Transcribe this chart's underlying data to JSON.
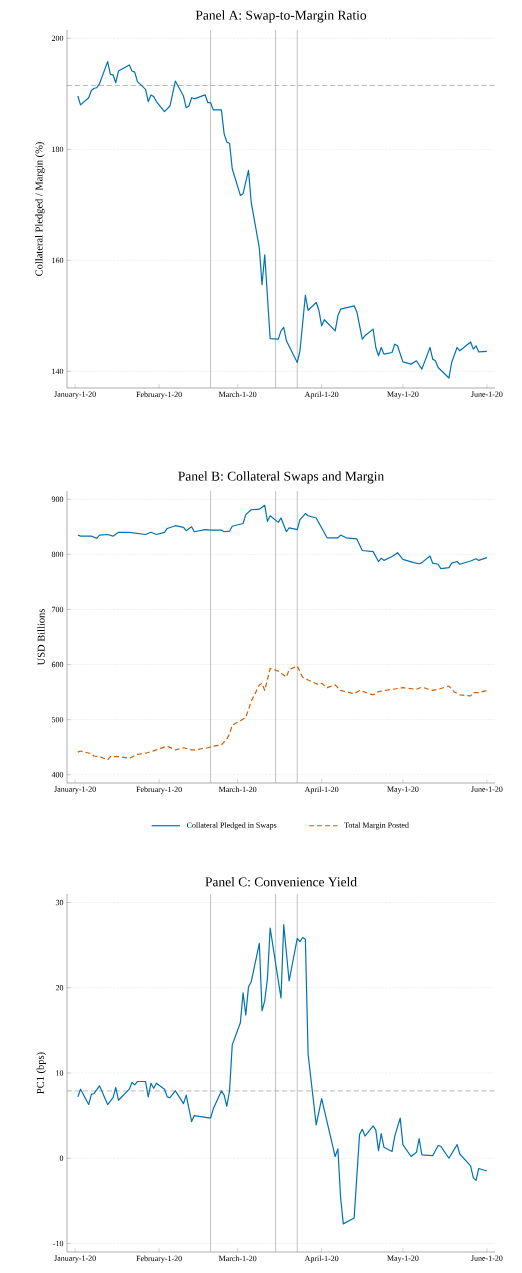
{
  "chart_data": [
    {
      "type": "line",
      "title": "Panel A: Swap-to-Margin Ratio",
      "ylabel": "Collateral Pledged / Margin (%)",
      "grid": "y",
      "xlim": [
        "2019-12-29",
        "2020-06-04"
      ],
      "ylim": [
        137,
        201.5
      ],
      "yticks": [
        140,
        160,
        180,
        200
      ],
      "xticks": [
        {
          "value": "2020-01-01",
          "label": "January-1-20"
        },
        {
          "value": "2020-02-01",
          "label": "February-1-20"
        },
        {
          "value": "2020-03-01",
          "label": "March-1-20"
        },
        {
          "value": "2020-04-01",
          "label": "April-1-20"
        },
        {
          "value": "2020-05-01",
          "label": "May-1-20"
        },
        {
          "value": "2020-06-01",
          "label": "June-1-20"
        }
      ],
      "ref_lines": [
        {
          "axis": "y",
          "value": 191.5,
          "color": "#888888",
          "line_style": "dashed"
        },
        {
          "axis": "x",
          "value": "2020-02-20",
          "color": "#999999",
          "line_style": "solid"
        },
        {
          "axis": "x",
          "value": "2020-03-15",
          "color": "#999999",
          "line_style": "solid"
        },
        {
          "axis": "x",
          "value": "2020-03-23",
          "color": "#999999",
          "line_style": "solid"
        }
      ],
      "series": [
        {
          "color": "#0072b2",
          "line_style": "solid",
          "x": [
            "2020-01-02",
            "2020-01-03",
            "2020-01-06",
            "2020-01-07",
            "2020-01-08",
            "2020-01-09",
            "2020-01-10",
            "2020-01-13",
            "2020-01-14",
            "2020-01-15",
            "2020-01-16",
            "2020-01-17",
            "2020-01-21",
            "2020-01-22",
            "2020-01-23",
            "2020-01-24",
            "2020-01-27",
            "2020-01-28",
            "2020-01-29",
            "2020-01-30",
            "2020-01-31",
            "2020-02-03",
            "2020-02-05",
            "2020-02-07",
            "2020-02-10",
            "2020-02-11",
            "2020-02-12",
            "2020-02-13",
            "2020-02-14",
            "2020-02-18",
            "2020-02-19",
            "2020-02-20",
            "2020-02-21",
            "2020-02-24",
            "2020-02-25",
            "2020-02-26",
            "2020-02-27",
            "2020-02-28",
            "2020-03-02",
            "2020-03-03",
            "2020-03-05",
            "2020-03-06",
            "2020-03-09",
            "2020-03-10",
            "2020-03-11",
            "2020-03-13",
            "2020-03-16",
            "2020-03-17",
            "2020-03-18",
            "2020-03-19",
            "2020-03-23",
            "2020-03-24",
            "2020-03-26",
            "2020-03-27",
            "2020-03-30",
            "2020-03-31",
            "2020-04-01",
            "2020-04-02",
            "2020-04-06",
            "2020-04-07",
            "2020-04-08",
            "2020-04-13",
            "2020-04-14",
            "2020-04-16",
            "2020-04-17",
            "2020-04-20",
            "2020-04-21",
            "2020-04-22",
            "2020-04-23",
            "2020-04-24",
            "2020-04-27",
            "2020-04-28",
            "2020-04-29",
            "2020-05-01",
            "2020-05-04",
            "2020-05-06",
            "2020-05-08",
            "2020-05-11",
            "2020-05-12",
            "2020-05-13",
            "2020-05-14",
            "2020-05-18",
            "2020-05-19",
            "2020-05-21",
            "2020-05-22",
            "2020-05-26",
            "2020-05-27",
            "2020-05-28",
            "2020-05-29",
            "2020-06-01"
          ],
          "values": [
            189.6,
            188.0,
            189.3,
            190.6,
            191.0,
            191.1,
            191.8,
            195.8,
            193.5,
            193.4,
            192.0,
            194.1,
            195.2,
            194.1,
            193.9,
            192.2,
            190.8,
            188.6,
            189.8,
            189.5,
            188.6,
            186.8,
            187.8,
            192.3,
            189.6,
            187.5,
            187.8,
            189.3,
            189.1,
            189.8,
            188.4,
            188.4,
            187.1,
            187.1,
            182.8,
            181.3,
            181.1,
            176.5,
            171.7,
            172.0,
            176.2,
            170.5,
            162.2,
            155.6,
            161.0,
            145.9,
            145.8,
            147.3,
            147.9,
            145.5,
            141.6,
            143.7,
            153.7,
            151.0,
            152.4,
            151.0,
            148.2,
            149.3,
            147.3,
            150.0,
            151.2,
            151.8,
            150.7,
            145.8,
            146.4,
            147.6,
            144.3,
            142.8,
            144.3,
            143.1,
            143.4,
            144.9,
            144.6,
            141.7,
            141.3,
            141.9,
            140.4,
            144.3,
            142.2,
            141.9,
            140.7,
            138.8,
            141.6,
            144.3,
            143.7,
            145.3,
            144.0,
            144.6,
            143.5,
            143.6
          ]
        }
      ]
    },
    {
      "type": "line",
      "title": "Panel B: Collateral Swaps and Margin",
      "ylabel": "USD Billions",
      "grid": "y",
      "legend": "bottom",
      "xlim": [
        "2019-12-29",
        "2020-06-04"
      ],
      "ylim": [
        385,
        915
      ],
      "yticks": [
        400,
        500,
        600,
        700,
        800,
        900
      ],
      "xticks": [
        {
          "value": "2020-01-01",
          "label": "January-1-20"
        },
        {
          "value": "2020-02-01",
          "label": "February-1-20"
        },
        {
          "value": "2020-03-01",
          "label": "March-1-20"
        },
        {
          "value": "2020-04-01",
          "label": "April-1-20"
        },
        {
          "value": "2020-05-01",
          "label": "May-1-20"
        },
        {
          "value": "2020-06-01",
          "label": "June-1-20"
        }
      ],
      "ref_lines": [
        {
          "axis": "x",
          "value": "2020-02-20",
          "color": "#999999",
          "line_style": "solid"
        },
        {
          "axis": "x",
          "value": "2020-03-15",
          "color": "#999999",
          "line_style": "solid"
        },
        {
          "axis": "x",
          "value": "2020-03-23",
          "color": "#999999",
          "line_style": "solid"
        }
      ],
      "series": [
        {
          "name": "Collateral Pledged in Swaps",
          "color": "#0072b2",
          "line_style": "solid",
          "x": [
            "2020-01-02",
            "2020-01-03",
            "2020-01-07",
            "2020-01-08",
            "2020-01-09",
            "2020-01-10",
            "2020-01-13",
            "2020-01-15",
            "2020-01-17",
            "2020-01-21",
            "2020-01-27",
            "2020-01-29",
            "2020-01-31",
            "2020-02-03",
            "2020-02-04",
            "2020-02-07",
            "2020-02-10",
            "2020-02-11",
            "2020-02-13",
            "2020-02-14",
            "2020-02-18",
            "2020-02-20",
            "2020-02-24",
            "2020-02-25",
            "2020-02-27",
            "2020-02-28",
            "2020-03-03",
            "2020-03-04",
            "2020-03-06",
            "2020-03-09",
            "2020-03-11",
            "2020-03-12",
            "2020-03-13",
            "2020-03-16",
            "2020-03-17",
            "2020-03-19",
            "2020-03-20",
            "2020-03-23",
            "2020-03-24",
            "2020-03-26",
            "2020-03-27",
            "2020-03-30",
            "2020-04-03",
            "2020-04-07",
            "2020-04-08",
            "2020-04-10",
            "2020-04-14",
            "2020-04-16",
            "2020-04-20",
            "2020-04-22",
            "2020-04-23",
            "2020-04-24",
            "2020-04-27",
            "2020-04-29",
            "2020-05-01",
            "2020-05-05",
            "2020-05-07",
            "2020-05-08",
            "2020-05-11",
            "2020-05-12",
            "2020-05-14",
            "2020-05-15",
            "2020-05-18",
            "2020-05-19",
            "2020-05-21",
            "2020-05-22",
            "2020-05-26",
            "2020-05-28",
            "2020-05-29",
            "2020-06-01"
          ],
          "values": [
            835,
            833,
            833,
            831,
            829,
            835,
            836,
            833,
            840,
            840,
            836,
            840,
            836,
            840,
            847,
            852,
            849,
            843,
            850,
            841,
            845,
            844,
            844,
            841,
            842,
            851,
            856,
            872,
            881,
            882,
            889,
            860,
            870,
            858,
            866,
            841,
            848,
            845,
            863,
            874,
            870,
            866,
            830,
            830,
            835,
            830,
            828,
            807,
            805,
            787,
            793,
            789,
            796,
            803,
            791,
            785,
            783,
            785,
            797,
            784,
            782,
            774,
            776,
            784,
            787,
            782,
            788,
            792,
            789,
            794
          ]
        },
        {
          "name": "Total Margin Posted",
          "color": "#d55e00",
          "line_style": "dashed",
          "x": [
            "2020-01-02",
            "2020-01-03",
            "2020-01-07",
            "2020-01-08",
            "2020-01-10",
            "2020-01-13",
            "2020-01-14",
            "2020-01-17",
            "2020-01-21",
            "2020-01-24",
            "2020-01-27",
            "2020-01-29",
            "2020-01-31",
            "2020-02-04",
            "2020-02-07",
            "2020-02-10",
            "2020-02-13",
            "2020-02-14",
            "2020-02-19",
            "2020-02-21",
            "2020-02-24",
            "2020-02-26",
            "2020-02-27",
            "2020-02-28",
            "2020-03-02",
            "2020-03-04",
            "2020-03-06",
            "2020-03-09",
            "2020-03-10",
            "2020-03-11",
            "2020-03-13",
            "2020-03-16",
            "2020-03-19",
            "2020-03-20",
            "2020-03-23",
            "2020-03-25",
            "2020-03-27",
            "2020-03-31",
            "2020-04-01",
            "2020-04-03",
            "2020-04-06",
            "2020-04-08",
            "2020-04-13",
            "2020-04-15",
            "2020-04-20",
            "2020-04-22",
            "2020-04-27",
            "2020-05-01",
            "2020-05-06",
            "2020-05-08",
            "2020-05-12",
            "2020-05-14",
            "2020-05-18",
            "2020-05-20",
            "2020-05-22",
            "2020-05-26",
            "2020-05-27",
            "2020-05-29",
            "2020-06-01"
          ],
          "values": [
            441,
            443,
            438,
            434,
            433,
            427,
            433,
            433,
            430,
            437,
            439,
            442,
            445,
            452,
            445,
            449,
            445,
            445,
            449,
            452,
            454,
            465,
            474,
            490,
            498,
            504,
            533,
            563,
            566,
            553,
            593,
            588,
            577,
            591,
            597,
            577,
            572,
            563,
            566,
            558,
            563,
            553,
            547,
            553,
            545,
            551,
            555,
            558,
            555,
            559,
            553,
            555,
            561,
            550,
            545,
            543,
            549,
            549,
            553
          ]
        }
      ]
    },
    {
      "type": "line",
      "title": "Panel C: Convenience Yield",
      "ylabel": "PC1 (bps)",
      "grid": "y",
      "xlim": [
        "2019-12-29",
        "2020-06-04"
      ],
      "ylim": [
        -11,
        31
      ],
      "yticks": [
        -10,
        0,
        10,
        20,
        30
      ],
      "xticks": [
        {
          "value": "2020-01-01",
          "label": "January-1-20"
        },
        {
          "value": "2020-02-01",
          "label": "February-1-20"
        },
        {
          "value": "2020-03-01",
          "label": "March-1-20"
        },
        {
          "value": "2020-04-01",
          "label": "April-1-20"
        },
        {
          "value": "2020-05-01",
          "label": "May-1-20"
        },
        {
          "value": "2020-06-01",
          "label": "June-1-20"
        }
      ],
      "ref_lines": [
        {
          "axis": "y",
          "value": 7.9,
          "color": "#888888",
          "line_style": "dashed"
        },
        {
          "axis": "x",
          "value": "2020-02-20",
          "color": "#999999",
          "line_style": "solid"
        },
        {
          "axis": "x",
          "value": "2020-03-15",
          "color": "#999999",
          "line_style": "solid"
        },
        {
          "axis": "x",
          "value": "2020-03-23",
          "color": "#999999",
          "line_style": "solid"
        }
      ],
      "series": [
        {
          "color": "#0072b2",
          "line_style": "solid",
          "x": [
            "2020-01-02",
            "2020-01-03",
            "2020-01-06",
            "2020-01-07",
            "2020-01-08",
            "2020-01-10",
            "2020-01-13",
            "2020-01-15",
            "2020-01-16",
            "2020-01-17",
            "2020-01-21",
            "2020-01-22",
            "2020-01-23",
            "2020-01-24",
            "2020-01-27",
            "2020-01-28",
            "2020-01-29",
            "2020-01-30",
            "2020-01-31",
            "2020-02-03",
            "2020-02-04",
            "2020-02-05",
            "2020-02-07",
            "2020-02-10",
            "2020-02-11",
            "2020-02-13",
            "2020-02-14",
            "2020-02-20",
            "2020-02-21",
            "2020-02-24",
            "2020-02-25",
            "2020-02-26",
            "2020-02-27",
            "2020-02-28",
            "2020-03-02",
            "2020-03-03",
            "2020-03-04",
            "2020-03-05",
            "2020-03-06",
            "2020-03-09",
            "2020-03-10",
            "2020-03-11",
            "2020-03-12",
            "2020-03-13",
            "2020-03-17",
            "2020-03-18",
            "2020-03-20",
            "2020-03-23",
            "2020-03-24",
            "2020-03-25",
            "2020-03-26",
            "2020-03-27",
            "2020-03-30",
            "2020-04-01",
            "2020-04-06",
            "2020-04-07",
            "2020-04-08",
            "2020-04-09",
            "2020-04-13",
            "2020-04-15",
            "2020-04-16",
            "2020-04-17",
            "2020-04-20",
            "2020-04-21",
            "2020-04-22",
            "2020-04-23",
            "2020-04-24",
            "2020-04-27",
            "2020-04-28",
            "2020-04-30",
            "2020-05-01",
            "2020-05-04",
            "2020-05-06",
            "2020-05-07",
            "2020-05-08",
            "2020-05-12",
            "2020-05-14",
            "2020-05-15",
            "2020-05-18",
            "2020-05-21",
            "2020-05-22",
            "2020-05-26",
            "2020-05-27",
            "2020-05-28",
            "2020-05-29",
            "2020-06-01"
          ],
          "values": [
            7.2,
            8.1,
            6.3,
            7.5,
            7.6,
            8.5,
            6.3,
            7.1,
            8.3,
            6.8,
            8.1,
            8.9,
            8.6,
            9.0,
            9.0,
            7.2,
            8.8,
            8.2,
            8.8,
            8.1,
            7.2,
            7.1,
            7.9,
            6.4,
            7.4,
            4.3,
            5.0,
            4.7,
            5.8,
            7.9,
            7.4,
            6.1,
            7.9,
            13.3,
            15.9,
            19.4,
            16.8,
            20.1,
            20.7,
            25.2,
            17.3,
            18.5,
            21.1,
            27.0,
            18.8,
            27.4,
            20.8,
            25.8,
            25.4,
            25.9,
            25.7,
            12.2,
            3.9,
            7.0,
            0.2,
            1.1,
            -4.6,
            -7.7,
            -7.0,
            2.8,
            3.4,
            2.6,
            3.8,
            3.3,
            0.9,
            2.9,
            1.3,
            0.8,
            2.6,
            4.7,
            1.6,
            0.2,
            0.7,
            2.3,
            0.4,
            0.3,
            1.5,
            1.4,
            0.0,
            1.6,
            0.5,
            -0.9,
            -2.3,
            -2.6,
            -1.2,
            -1.5
          ]
        }
      ]
    }
  ]
}
